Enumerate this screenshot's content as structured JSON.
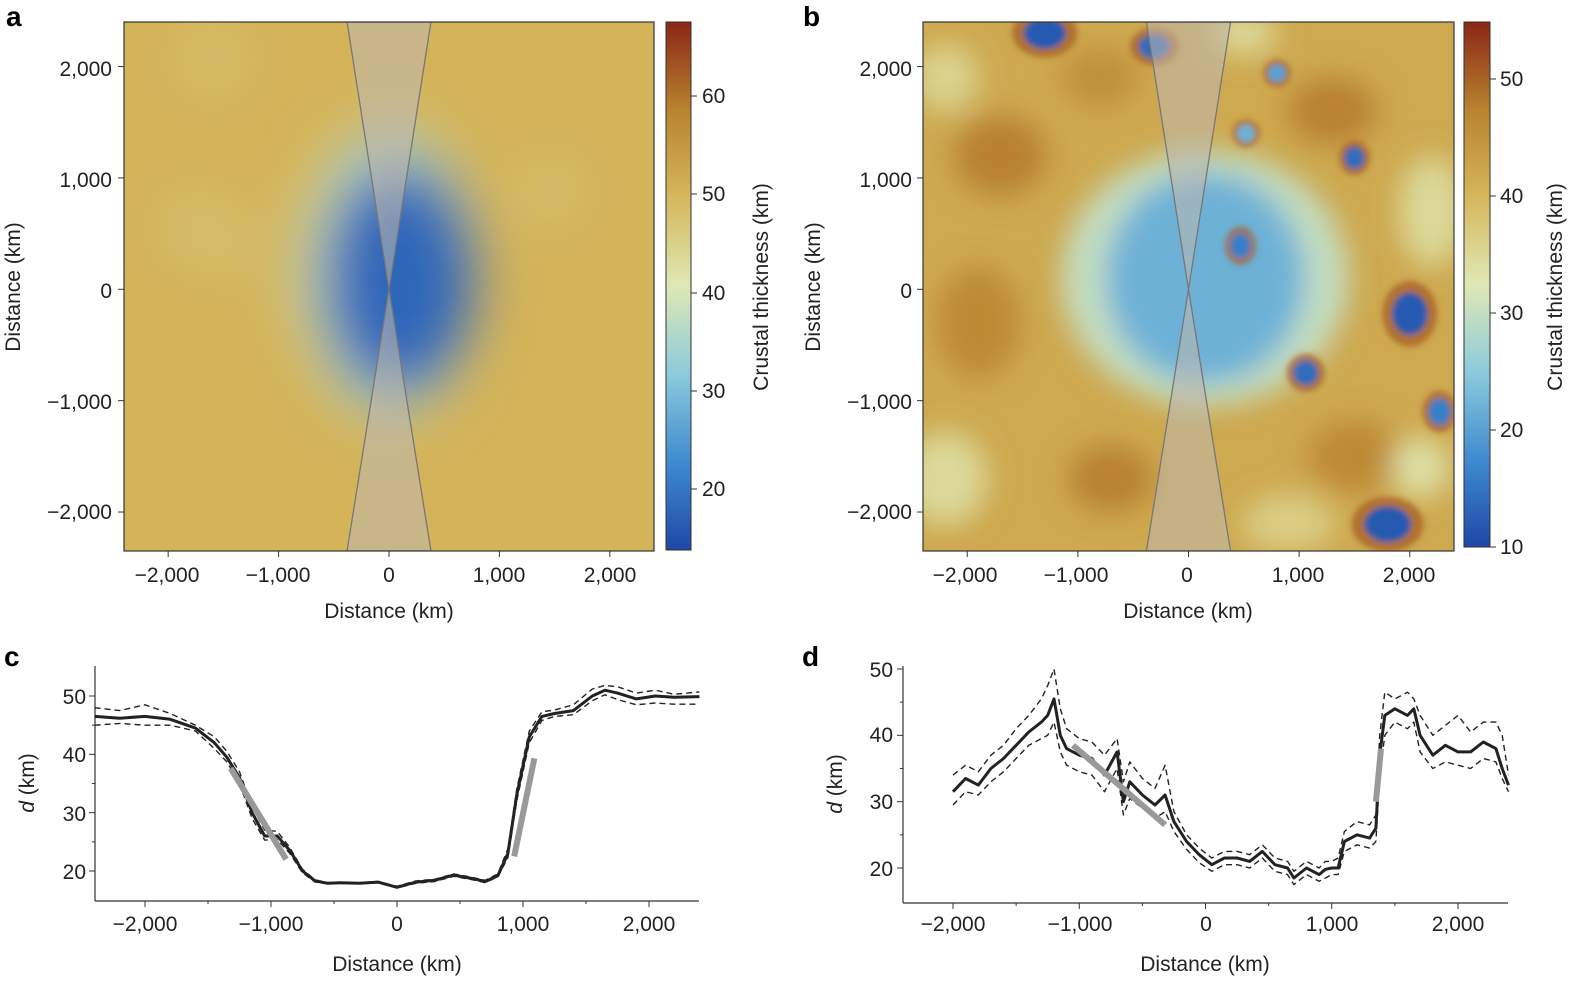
{
  "panels": {
    "a": {
      "letter": "a",
      "xlabel": "Distance (km)",
      "ylabel": "Distance (km)",
      "x_ticks": [
        "−2,000",
        "−1,000",
        "0",
        "1,000",
        "2,000"
      ],
      "y_ticks": [
        "2,000",
        "1,000",
        "0",
        "−1,000",
        "−2,000"
      ],
      "colorbar_label": "Crustal thickness (km)",
      "colorbar_ticks": [
        "60",
        "50",
        "40",
        "30",
        "20"
      ]
    },
    "b": {
      "letter": "b",
      "xlabel": "Distance (km)",
      "ylabel": "Distance (km)",
      "x_ticks": [
        "−2,000",
        "−1,000",
        "0",
        "1,000",
        "2,000"
      ],
      "y_ticks": [
        "2,000",
        "1,000",
        "0",
        "−1,000",
        "−2,000"
      ],
      "colorbar_label": "Crustal thickness (km)",
      "colorbar_ticks": [
        "50",
        "40",
        "30",
        "20",
        "10"
      ]
    },
    "c": {
      "letter": "c",
      "xlabel": "Distance (km)",
      "ylabel_italic": "d",
      "ylabel_rest": " (km)",
      "x_ticks": [
        "−2,000",
        "−1,000",
        "0",
        "1,000",
        "2,000"
      ],
      "y_ticks": [
        "50",
        "40",
        "30",
        "20"
      ]
    },
    "d": {
      "letter": "d",
      "xlabel": "Distance (km)",
      "ylabel_italic": "d",
      "ylabel_rest": " (km)",
      "x_ticks": [
        "−2,000",
        "−1,000",
        "0",
        "1,000",
        "2,000"
      ],
      "y_ticks": [
        "50",
        "40",
        "30",
        "20"
      ]
    }
  },
  "colors": {
    "colormap": [
      "#1e48a6",
      "#3f8bd0",
      "#8ccbdc",
      "#dfe8b4",
      "#d6b75c",
      "#b9832f",
      "#8a2616"
    ],
    "profile_line": "#222222",
    "fit_line": "#999999",
    "wedge": "#bdb8ae"
  },
  "chart_data": [
    {
      "panel": "a",
      "type": "heatmap",
      "xlabel": "Distance (km)",
      "ylabel": "Distance (km)",
      "xlim": [
        -2400,
        2400
      ],
      "ylim": [
        -2350,
        2400
      ],
      "colorbar": {
        "label": "Crustal thickness (km)",
        "range": [
          14,
          67
        ],
        "ticks": [
          20,
          30,
          40,
          50,
          60
        ]
      },
      "background_km": 50,
      "features": [
        {
          "kind": "basin",
          "x": 0,
          "y": 150,
          "rx": 800,
          "ry": 1300,
          "km": 36
        },
        {
          "kind": "basin",
          "x": -250,
          "y": 150,
          "rx": 600,
          "ry": 1000,
          "km": 38
        },
        {
          "kind": "basin",
          "x": 80,
          "y": 90,
          "rx": 700,
          "ry": 1050,
          "km": 18
        },
        {
          "kind": "crater",
          "x": -1450,
          "y": 400,
          "rx": 120,
          "ry": 120,
          "km": 40
        },
        {
          "kind": "crater",
          "x": -1770,
          "y": 570,
          "rx": 130,
          "ry": 130,
          "km": 40
        },
        {
          "kind": "crater",
          "x": 1450,
          "y": 880,
          "rx": 130,
          "ry": 130,
          "km": 40
        },
        {
          "kind": "crater",
          "x": -1600,
          "y": 2070,
          "rx": 150,
          "ry": 150,
          "km": 42
        }
      ],
      "wedge": {
        "half_width_km": 380,
        "extent_km": [
          -2350,
          2400
        ]
      }
    },
    {
      "panel": "b",
      "type": "heatmap",
      "xlabel": "Distance (km)",
      "ylabel": "Distance (km)",
      "xlim": [
        -2400,
        2400
      ],
      "ylim": [
        -2350,
        2400
      ],
      "colorbar": {
        "label": "Crustal thickness (km)",
        "range": [
          10,
          55
        ],
        "ticks": [
          10,
          20,
          30,
          40,
          50
        ]
      },
      "background_km": 42,
      "features": [
        {
          "kind": "basin",
          "x": 150,
          "y": 100,
          "rx": 1300,
          "ry": 1150,
          "km": 30
        },
        {
          "kind": "basin",
          "x": 150,
          "y": 100,
          "rx": 900,
          "ry": 950,
          "km": 22
        },
        {
          "kind": "crater",
          "x": 2000,
          "y": -220,
          "rx": 160,
          "ry": 190,
          "km": 12
        },
        {
          "kind": "crater",
          "x": 1060,
          "y": -750,
          "rx": 110,
          "ry": 110,
          "km": 14
        },
        {
          "kind": "crater",
          "x": 1500,
          "y": 1180,
          "rx": 90,
          "ry": 100,
          "km": 14
        },
        {
          "kind": "crater",
          "x": 1800,
          "y": -2110,
          "rx": 210,
          "ry": 160,
          "km": 12
        },
        {
          "kind": "crater",
          "x": -1300,
          "y": 2300,
          "rx": 190,
          "ry": 140,
          "km": 12
        },
        {
          "kind": "crater",
          "x": -310,
          "y": 2180,
          "rx": 140,
          "ry": 110,
          "km": 14
        },
        {
          "kind": "crater",
          "x": 470,
          "y": 390,
          "rx": 90,
          "ry": 110,
          "km": 16
        },
        {
          "kind": "crater",
          "x": 2270,
          "y": -1100,
          "rx": 100,
          "ry": 120,
          "km": 16
        },
        {
          "kind": "crater",
          "x": 800,
          "y": 1940,
          "rx": 80,
          "ry": 80,
          "km": 20
        },
        {
          "kind": "crater",
          "x": 520,
          "y": 1400,
          "rx": 80,
          "ry": 80,
          "km": 22
        }
      ],
      "wedge": {
        "half_width_km": 380,
        "extent_km": [
          -2350,
          2400
        ]
      }
    },
    {
      "panel": "c",
      "type": "line",
      "xlabel": "Distance (km)",
      "ylabel": "d (km)",
      "xlim": [
        -2400,
        2400
      ],
      "ylim": [
        15,
        55
      ],
      "series": [
        {
          "style": "solid",
          "x": [
            -2400,
            -2200,
            -2000,
            -1800,
            -1600,
            -1450,
            -1350,
            -1250,
            -1150,
            -1050,
            -950,
            -850,
            -750,
            -650,
            -550,
            -450,
            -300,
            -150,
            0,
            150,
            300,
            450,
            600,
            700,
            800,
            880,
            950,
            1050,
            1150,
            1250,
            1400,
            1550,
            1650,
            1750,
            1900,
            2050,
            2200,
            2400
          ],
          "y": [
            46.5,
            46.2,
            46.5,
            46,
            44.5,
            42,
            39.5,
            36,
            30,
            26,
            26,
            23.5,
            20,
            18.3,
            17.9,
            18,
            17.9,
            18.1,
            17.2,
            18.1,
            18.4,
            19.3,
            18.7,
            18.2,
            19.2,
            23,
            33,
            43,
            46.5,
            47,
            47.5,
            50,
            51,
            50.5,
            49.5,
            50,
            49.8,
            49.9
          ]
        },
        {
          "style": "dashed",
          "x": [
            -2400,
            -2200,
            -2000,
            -1800,
            -1600,
            -1450,
            -1350,
            -1250,
            -1150,
            -1050,
            -950,
            -850,
            -750,
            -650,
            -550,
            -450,
            -300,
            -150,
            0,
            150,
            300,
            450,
            600,
            700,
            800,
            880,
            950,
            1050,
            1150,
            1250,
            1400,
            1550,
            1650,
            1750,
            1900,
            2050,
            2200,
            2400
          ],
          "y": [
            48,
            47.5,
            48.5,
            47,
            45,
            43,
            40.5,
            37,
            31,
            27,
            26.8,
            24,
            20.3,
            18.5,
            18,
            18.1,
            18,
            18.2,
            17.4,
            18.3,
            18.6,
            19.5,
            18.9,
            18.4,
            19.5,
            23.8,
            34,
            44,
            47.3,
            47.6,
            48.5,
            51.2,
            51.8,
            51.6,
            50.5,
            51,
            50.3,
            50.7
          ]
        },
        {
          "style": "dashed",
          "x": [
            -2400,
            -2200,
            -2000,
            -1800,
            -1600,
            -1450,
            -1350,
            -1250,
            -1150,
            -1050,
            -950,
            -850,
            -750,
            -650,
            -550,
            -450,
            -300,
            -150,
            0,
            150,
            300,
            450,
            600,
            700,
            800,
            880,
            950,
            1050,
            1150,
            1250,
            1400,
            1550,
            1650,
            1750,
            1900,
            2050,
            2200,
            2400
          ],
          "y": [
            45,
            45.3,
            45,
            45,
            44,
            41,
            38.7,
            35,
            29,
            25.3,
            25.4,
            23,
            19.7,
            18.1,
            17.8,
            17.9,
            17.8,
            18,
            17.1,
            17.9,
            18.2,
            19.1,
            18.5,
            18,
            19,
            22.3,
            32,
            42,
            45.8,
            46.5,
            46.8,
            49.2,
            50.2,
            49.4,
            48.5,
            48.8,
            48.6,
            48.6
          ]
        }
      ],
      "fits": [
        {
          "x": [
            -1320,
            -880
          ],
          "y": [
            37.6,
            22
          ]
        },
        {
          "x": [
            930,
            1090
          ],
          "y": [
            22.5,
            39.3
          ]
        }
      ]
    },
    {
      "panel": "d",
      "type": "line",
      "xlabel": "Distance (km)",
      "ylabel": "d (km)",
      "xlim": [
        -2400,
        2400
      ],
      "ylim": [
        15,
        51
      ],
      "series": [
        {
          "style": "solid",
          "x": [
            -2000,
            -1900,
            -1800,
            -1700,
            -1600,
            -1500,
            -1400,
            -1300,
            -1250,
            -1200,
            -1150,
            -1100,
            -1000,
            -900,
            -800,
            -700,
            -650,
            -600,
            -500,
            -400,
            -320,
            -250,
            -150,
            -50,
            50,
            150,
            250,
            350,
            450,
            550,
            650,
            700,
            800,
            900,
            950,
            1000,
            1050,
            1100,
            1200,
            1300,
            1350,
            1380,
            1420,
            1500,
            1600,
            1650,
            1700,
            1800,
            1900,
            2000,
            2100,
            2200,
            2300,
            2350,
            2400
          ],
          "y": [
            31.5,
            33.5,
            32.5,
            35,
            36.5,
            38.5,
            40.5,
            42,
            43,
            45.5,
            40,
            38,
            37,
            36.5,
            34,
            37.5,
            30,
            33,
            31,
            29.5,
            31,
            27,
            24,
            22,
            20.5,
            21.5,
            21.5,
            21,
            22.5,
            20.5,
            20,
            18.5,
            20,
            19,
            19.8,
            20,
            20,
            24,
            25,
            24.5,
            26,
            37,
            43,
            44,
            43,
            44,
            40,
            37,
            38.5,
            37.5,
            37.5,
            39,
            38,
            35,
            32.5
          ]
        },
        {
          "style": "dashed",
          "x": [
            -2000,
            -1900,
            -1800,
            -1700,
            -1600,
            -1500,
            -1400,
            -1300,
            -1250,
            -1200,
            -1150,
            -1100,
            -1000,
            -900,
            -800,
            -700,
            -650,
            -600,
            -500,
            -400,
            -320,
            -250,
            -150,
            -50,
            50,
            150,
            250,
            350,
            450,
            550,
            650,
            700,
            800,
            900,
            950,
            1000,
            1050,
            1100,
            1200,
            1300,
            1350,
            1380,
            1420,
            1500,
            1600,
            1650,
            1700,
            1800,
            1900,
            2000,
            2100,
            2200,
            2300,
            2350,
            2400
          ],
          "y": [
            34,
            35.5,
            34.5,
            37,
            38.5,
            41,
            43,
            45.5,
            47.5,
            50,
            44,
            41,
            39.5,
            39,
            37,
            39.5,
            33,
            36,
            33.5,
            32,
            35.5,
            28.5,
            25,
            23,
            21.5,
            22.5,
            22.5,
            22,
            23.5,
            21.5,
            21,
            19.5,
            21,
            20,
            21,
            21,
            21.5,
            25.5,
            27,
            26.5,
            28,
            40,
            46.5,
            45.5,
            46.5,
            45.5,
            43,
            40,
            41.5,
            43,
            40.5,
            42,
            42,
            40,
            34
          ]
        },
        {
          "style": "dashed",
          "x": [
            -2000,
            -1900,
            -1800,
            -1700,
            -1600,
            -1500,
            -1400,
            -1300,
            -1250,
            -1200,
            -1150,
            -1100,
            -1000,
            -900,
            -800,
            -700,
            -650,
            -600,
            -500,
            -400,
            -320,
            -250,
            -150,
            -50,
            50,
            150,
            250,
            350,
            450,
            550,
            650,
            700,
            800,
            900,
            950,
            1000,
            1050,
            1100,
            1200,
            1300,
            1350,
            1380,
            1420,
            1500,
            1600,
            1650,
            1700,
            1800,
            1900,
            2000,
            2100,
            2200,
            2300,
            2350,
            2400
          ],
          "y": [
            29.5,
            31.5,
            31,
            33,
            34.5,
            36.5,
            38.5,
            39.5,
            40,
            42,
            37.5,
            35.5,
            34.5,
            34,
            31.5,
            35,
            28,
            30.5,
            29,
            27.5,
            28.5,
            25.5,
            22.8,
            20.8,
            19.5,
            20.5,
            20.5,
            20,
            21.5,
            19.5,
            19,
            17.5,
            19,
            18,
            18.5,
            19,
            19,
            22.5,
            23.5,
            23,
            24,
            34,
            40,
            42,
            41,
            42,
            37.5,
            35,
            36,
            35.5,
            35,
            36.5,
            36,
            33.5,
            31.5
          ]
        }
      ],
      "fits": [
        {
          "x": [
            -1050,
            -320
          ],
          "y": [
            38.5,
            26.5
          ]
        },
        {
          "x": [
            1350,
            1390
          ],
          "y": [
            30,
            38
          ]
        }
      ]
    }
  ]
}
